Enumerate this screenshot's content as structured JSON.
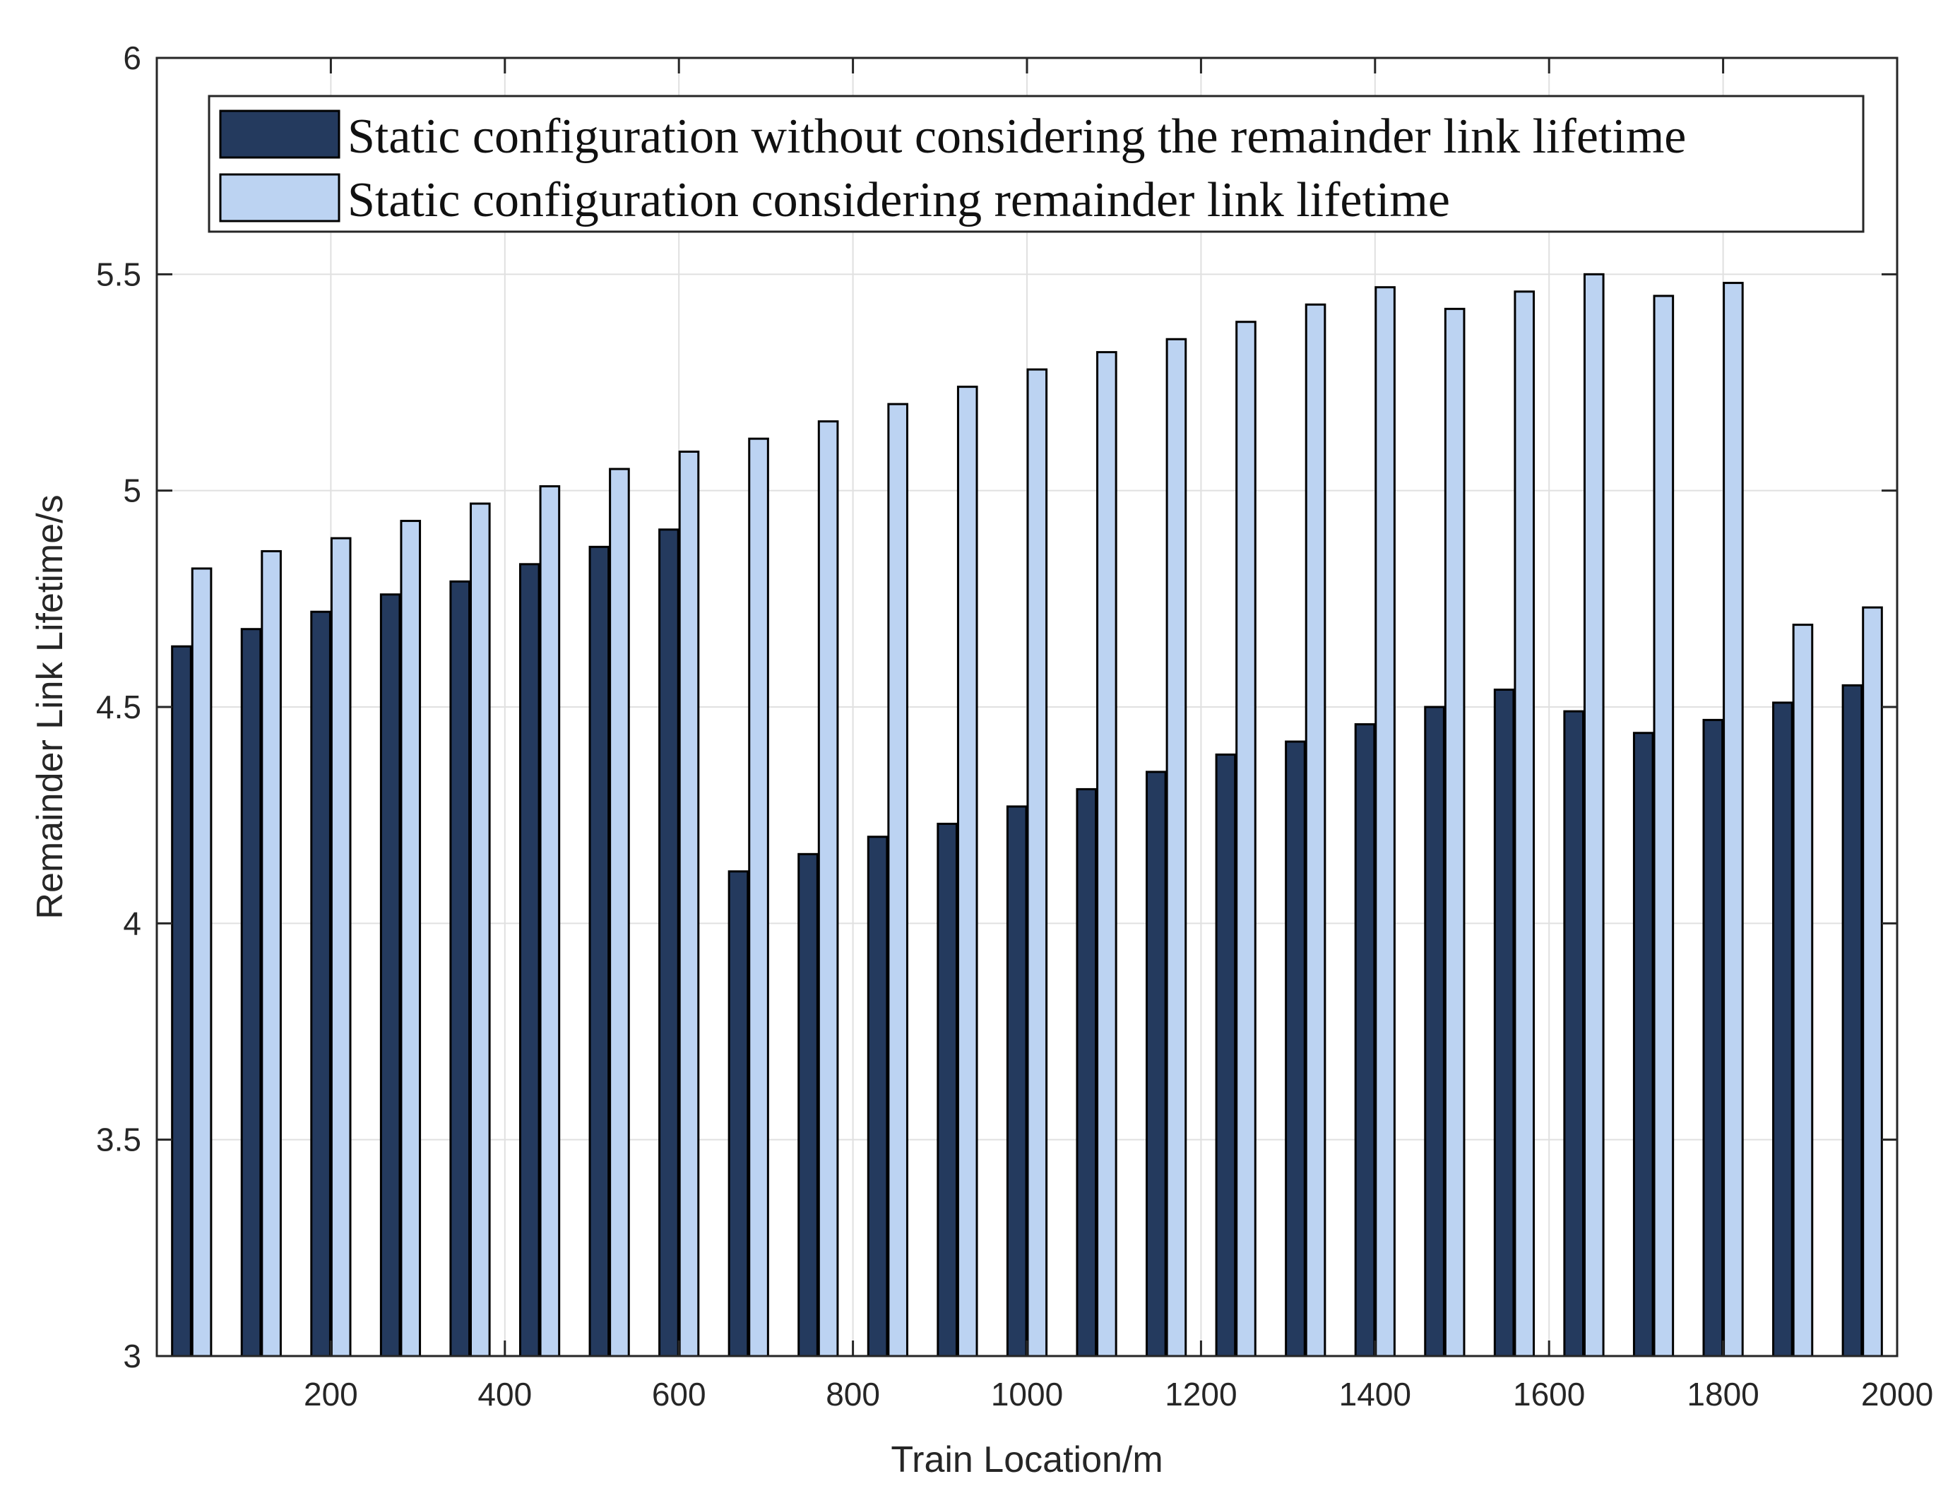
{
  "chart_data": {
    "type": "bar",
    "title": "",
    "xlabel": "Train Location/m",
    "ylabel": "Remainder Link Lifetime/s",
    "xlim": [
      0,
      2000
    ],
    "ylim": [
      3,
      6
    ],
    "x_ticks": [
      200,
      400,
      600,
      800,
      1000,
      1200,
      1400,
      1600,
      1800,
      2000
    ],
    "x_tick_labels": [
      "200",
      "400",
      "600",
      "800",
      "1000",
      "1200",
      "1400",
      "1600",
      "1800",
      "2000"
    ],
    "y_ticks": [
      3,
      3.5,
      4,
      4.5,
      5,
      5.5,
      6
    ],
    "y_tick_labels": [
      "3",
      "3.5",
      "4",
      "4.5",
      "5",
      "5.5",
      "6"
    ],
    "grid": true,
    "legend_position": "top",
    "x": [
      40,
      120,
      200,
      280,
      360,
      440,
      520,
      600,
      680,
      760,
      840,
      920,
      1000,
      1080,
      1160,
      1240,
      1320,
      1400,
      1480,
      1560,
      1640,
      1720,
      1800,
      1880,
      1960
    ],
    "series": [
      {
        "name": "Static configuration without considering the remainder link lifetime",
        "color": "#243a5e",
        "values": [
          4.64,
          4.68,
          4.72,
          4.76,
          4.79,
          4.83,
          4.87,
          4.91,
          4.12,
          4.16,
          4.2,
          4.23,
          4.27,
          4.31,
          4.35,
          4.39,
          4.42,
          4.46,
          4.5,
          4.54,
          4.49,
          4.44,
          4.47,
          4.51,
          4.55
        ]
      },
      {
        "name": "Static configuration considering remainder link lifetime",
        "color": "#bcd3f2",
        "values": [
          4.82,
          4.86,
          4.89,
          4.93,
          4.97,
          5.01,
          5.05,
          5.09,
          5.12,
          5.16,
          5.2,
          5.24,
          5.28,
          5.32,
          5.35,
          5.39,
          5.43,
          5.47,
          5.42,
          5.46,
          5.5,
          5.45,
          5.48,
          4.69,
          4.73
        ]
      }
    ]
  }
}
